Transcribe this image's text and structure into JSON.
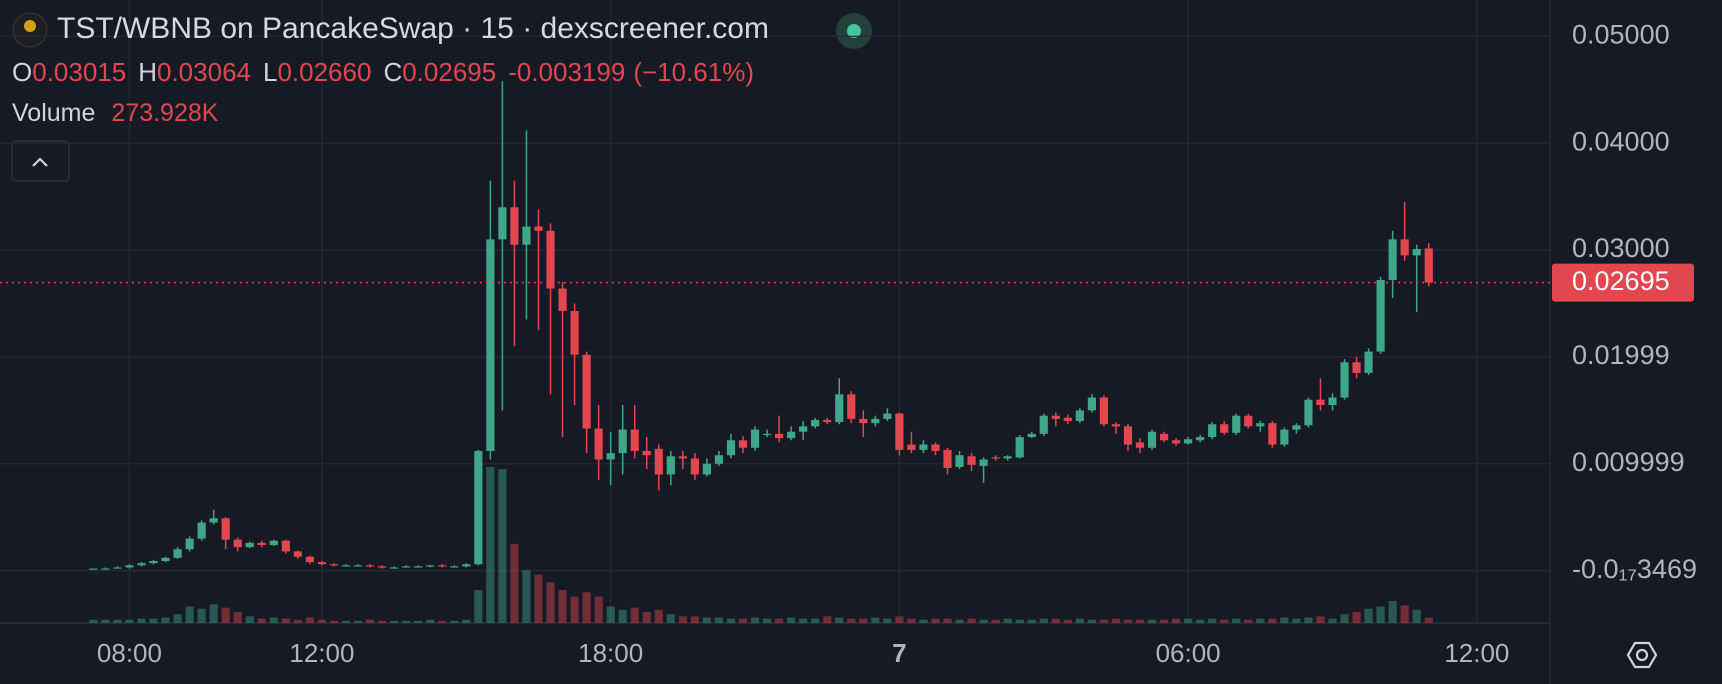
{
  "chart_data": {
    "type": "candlestick",
    "title": "TST/WBNB on PancakeSwap · 15 · dexscreener.com",
    "ohlc_letters": [
      "O",
      "H",
      "L",
      "C"
    ],
    "last_low_label": "0.02660",
    "change": -0.003199,
    "change_pct": {
      "value": -10.61,
      "label": "(−10.61%)"
    },
    "volume_title": "Volume",
    "volume_last_label": "273.928K",
    "up_color": "#3fa688",
    "down_color": "#e2474f",
    "grid": true,
    "xlim": [
      5.31,
      37.52
    ],
    "ylim": [
      -0.0049,
      0.0534
    ],
    "xticks": [
      {
        "value": 8,
        "label": "08:00"
      },
      {
        "value": 12,
        "label": "12:00"
      },
      {
        "value": 18,
        "label": "18:00"
      },
      {
        "value": 24,
        "label": "7"
      },
      {
        "value": 30,
        "label": "06:00"
      },
      {
        "value": 36,
        "label": "12:00"
      }
    ],
    "yticks": [
      {
        "value": -3.469e-21,
        "label": "-0.0₁₇3469"
      },
      0.009999,
      0.01999,
      {
        "value": 0.03,
        "label": "0.03000"
      },
      {
        "value": 0.04,
        "label": "0.04000"
      },
      {
        "value": 0.05,
        "label": "0.05000"
      }
    ],
    "x": [
      7.25,
      7.5,
      7.75,
      8,
      8.25,
      8.5,
      8.75,
      9,
      9.25,
      9.5,
      9.75,
      10,
      10.25,
      10.5,
      10.75,
      11,
      11.25,
      11.5,
      11.75,
      12,
      12.25,
      12.5,
      12.75,
      13,
      13.25,
      13.5,
      13.75,
      14,
      14.25,
      14.5,
      14.75,
      15,
      15.25,
      15.5,
      15.75,
      16,
      16.25,
      16.5,
      16.75,
      17,
      17.25,
      17.5,
      17.75,
      18,
      18.25,
      18.5,
      18.75,
      19,
      19.25,
      19.5,
      19.75,
      20,
      20.25,
      20.5,
      20.75,
      21,
      21.25,
      21.5,
      21.75,
      22,
      22.25,
      22.5,
      22.75,
      23,
      23.25,
      23.5,
      23.75,
      24,
      24.25,
      24.5,
      24.75,
      25,
      25.25,
      25.5,
      25.75,
      26,
      26.25,
      26.5,
      26.75,
      27,
      27.25,
      27.5,
      27.75,
      28,
      28.25,
      28.5,
      28.75,
      29,
      29.25,
      29.5,
      29.75,
      30,
      30.25,
      30.5,
      30.75,
      31,
      31.25,
      31.5,
      31.75,
      32,
      32.25,
      32.5,
      32.75,
      33,
      33.25,
      33.5,
      33.75,
      34,
      34.25,
      34.5,
      34.75,
      35
    ],
    "open": [
      0.0001,
      0.0002,
      0.0002,
      0.0003,
      0.0005,
      0.0007,
      0.0009,
      0.0012,
      0.002,
      0.003,
      0.0045,
      0.0049,
      0.0029,
      0.0022,
      0.0026,
      0.0024,
      0.0028,
      0.0018,
      0.0013,
      0.0008,
      0.0006,
      0.0005,
      0.0005,
      0.0005,
      0.0004,
      0.0003,
      0.0003,
      0.0004,
      0.0004,
      0.0005,
      0.0004,
      0.0004,
      0.0006,
      0.0112,
      0.031,
      0.034,
      0.0305,
      0.0322,
      0.0318,
      0.0264,
      0.0243,
      0.0202,
      0.0133,
      0.0104,
      0.011,
      0.0132,
      0.0112,
      0.0114,
      0.009,
      0.0107,
      0.0105,
      0.009,
      0.01,
      0.0108,
      0.0122,
      0.0115,
      0.0127,
      0.0128,
      0.0124,
      0.013,
      0.0135,
      0.0141,
      0.0139,
      0.0165,
      0.0142,
      0.0138,
      0.0142,
      0.0147,
      0.0118,
      0.0113,
      0.0118,
      0.0113,
      0.0097,
      0.0107,
      0.0098,
      0.0106,
      0.0105,
      0.0106,
      0.0125,
      0.0128,
      0.0145,
      0.0143,
      0.014,
      0.015,
      0.0162,
      0.0137,
      0.0135,
      0.012,
      0.0115,
      0.0128,
      0.0122,
      0.0119,
      0.0122,
      0.0125,
      0.0137,
      0.0129,
      0.0145,
      0.0135,
      0.0138,
      0.0118,
      0.0132,
      0.0136,
      0.016,
      0.0155,
      0.0162,
      0.0195,
      0.0185,
      0.0205,
      0.0272,
      0.031,
      0.0295,
      0.03015
    ],
    "high": [
      0.0002,
      0.0003,
      0.0004,
      0.0006,
      0.0008,
      0.001,
      0.0013,
      0.0022,
      0.0032,
      0.0047,
      0.0057,
      0.005,
      0.0031,
      0.0027,
      0.0028,
      0.0029,
      0.0029,
      0.0019,
      0.0014,
      0.0009,
      0.0007,
      0.0006,
      0.0006,
      0.0006,
      0.0005,
      0.0004,
      0.0005,
      0.0005,
      0.0005,
      0.0006,
      0.0005,
      0.0007,
      0.0113,
      0.0365,
      0.0458,
      0.0365,
      0.0412,
      0.0338,
      0.0325,
      0.027,
      0.025,
      0.0205,
      0.0155,
      0.013,
      0.0155,
      0.0155,
      0.0125,
      0.0118,
      0.0112,
      0.0112,
      0.011,
      0.0105,
      0.0112,
      0.0128,
      0.0126,
      0.0135,
      0.0132,
      0.0145,
      0.0135,
      0.014,
      0.0143,
      0.0143,
      0.018,
      0.0168,
      0.015,
      0.0145,
      0.0152,
      0.0148,
      0.013,
      0.0122,
      0.012,
      0.0115,
      0.0112,
      0.011,
      0.0106,
      0.0108,
      0.0108,
      0.0127,
      0.013,
      0.0147,
      0.0148,
      0.0146,
      0.0152,
      0.0165,
      0.0164,
      0.0139,
      0.0137,
      0.0124,
      0.0132,
      0.013,
      0.0124,
      0.0125,
      0.0127,
      0.0139,
      0.014,
      0.0147,
      0.0147,
      0.014,
      0.014,
      0.0134,
      0.0138,
      0.0162,
      0.018,
      0.0166,
      0.0198,
      0.02,
      0.0208,
      0.0275,
      0.0318,
      0.0345,
      0.0305,
      0.03064
    ],
    "low": [
      0.0001,
      0.0001,
      0.0002,
      0.0002,
      0.0004,
      0.0006,
      0.0008,
      0.0011,
      0.0018,
      0.0028,
      0.0043,
      0.002,
      0.0018,
      0.0021,
      0.0022,
      0.0023,
      0.0016,
      0.0011,
      0.0006,
      0.0005,
      0.0004,
      0.0004,
      0.0004,
      0.0003,
      0.0002,
      0.0002,
      0.0003,
      0.0003,
      0.0003,
      0.0003,
      0.0003,
      0.0003,
      0.0005,
      0.0104,
      0.015,
      0.021,
      0.0235,
      0.0225,
      0.0165,
      0.0125,
      0.0155,
      0.011,
      0.0085,
      0.008,
      0.009,
      0.0105,
      0.0095,
      0.0075,
      0.008,
      0.0095,
      0.0085,
      0.0088,
      0.0098,
      0.0105,
      0.011,
      0.0112,
      0.0125,
      0.012,
      0.0122,
      0.0122,
      0.0133,
      0.0137,
      0.0137,
      0.0138,
      0.0125,
      0.0135,
      0.014,
      0.0108,
      0.011,
      0.011,
      0.0108,
      0.009,
      0.0095,
      0.0093,
      0.0082,
      0.0103,
      0.0103,
      0.0105,
      0.0124,
      0.0126,
      0.0135,
      0.0137,
      0.0138,
      0.0148,
      0.0135,
      0.0128,
      0.0112,
      0.011,
      0.0113,
      0.012,
      0.0117,
      0.0118,
      0.012,
      0.0123,
      0.0127,
      0.0127,
      0.0133,
      0.013,
      0.0115,
      0.0116,
      0.0128,
      0.0134,
      0.015,
      0.015,
      0.016,
      0.018,
      0.0183,
      0.0203,
      0.0255,
      0.029,
      0.0242,
      0.0266
    ],
    "close": [
      0.0002,
      0.0002,
      0.0003,
      0.0005,
      0.0007,
      0.0009,
      0.0012,
      0.002,
      0.003,
      0.0045,
      0.0049,
      0.0029,
      0.0022,
      0.0026,
      0.0024,
      0.0028,
      0.0018,
      0.0013,
      0.0008,
      0.0006,
      0.0005,
      0.0005,
      0.0005,
      0.0004,
      0.0003,
      0.0003,
      0.0004,
      0.0004,
      0.0005,
      0.0004,
      0.0004,
      0.0006,
      0.0112,
      0.031,
      0.034,
      0.0305,
      0.0322,
      0.0318,
      0.0264,
      0.0243,
      0.0202,
      0.0133,
      0.0104,
      0.011,
      0.0132,
      0.0112,
      0.0108,
      0.009,
      0.0107,
      0.0105,
      0.009,
      0.01,
      0.0108,
      0.0122,
      0.0115,
      0.0132,
      0.0128,
      0.0124,
      0.013,
      0.0135,
      0.0141,
      0.0139,
      0.0165,
      0.0142,
      0.0138,
      0.0142,
      0.0147,
      0.0113,
      0.0113,
      0.0118,
      0.0112,
      0.0096,
      0.0108,
      0.0099,
      0.0104,
      0.0105,
      0.0107,
      0.0125,
      0.0128,
      0.0145,
      0.0142,
      0.014,
      0.015,
      0.0162,
      0.0137,
      0.0135,
      0.0118,
      0.0115,
      0.013,
      0.0122,
      0.0119,
      0.0123,
      0.0125,
      0.0137,
      0.0129,
      0.0145,
      0.0135,
      0.0138,
      0.0118,
      0.0132,
      0.0136,
      0.016,
      0.0155,
      0.0162,
      0.0195,
      0.0185,
      0.0205,
      0.0272,
      0.031,
      0.0295,
      0.0301,
      0.02695
    ],
    "volume": [
      165000,
      165000,
      165000,
      165000,
      220000,
      220000,
      275000,
      440000,
      825000,
      715000,
      935000,
      770000,
      550000,
      330000,
      220000,
      275000,
      220000,
      165000,
      275000,
      165000,
      110000,
      110000,
      110000,
      165000,
      110000,
      110000,
      110000,
      110000,
      165000,
      110000,
      110000,
      165000,
      1650000,
      7810000,
      7700000,
      3960000,
      2640000,
      2420000,
      2035000,
      1650000,
      1320000,
      1540000,
      1320000,
      825000,
      660000,
      770000,
      550000,
      660000,
      440000,
      330000,
      330000,
      275000,
      275000,
      220000,
      220000,
      275000,
      220000,
      220000,
      275000,
      220000,
      220000,
      330000,
      275000,
      220000,
      220000,
      275000,
      220000,
      330000,
      220000,
      165000,
      220000,
      220000,
      165000,
      220000,
      165000,
      165000,
      220000,
      165000,
      165000,
      220000,
      220000,
      165000,
      220000,
      165000,
      165000,
      220000,
      165000,
      165000,
      165000,
      165000,
      220000,
      220000,
      165000,
      220000,
      165000,
      220000,
      165000,
      220000,
      220000,
      275000,
      220000,
      275000,
      330000,
      220000,
      440000,
      550000,
      715000,
      825000,
      1100000,
      880000,
      660000,
      273928
    ]
  }
}
